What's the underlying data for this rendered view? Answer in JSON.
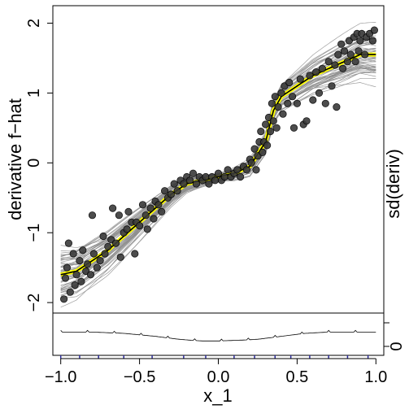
{
  "chart_data": [
    {
      "type": "scatter",
      "panel": "main",
      "title": "",
      "xlabel": "x_1",
      "ylabel": "derivative f−hat",
      "right_label": "sd(deriv)",
      "xlim": [
        -1.05,
        1.05
      ],
      "ylim": [
        -2.15,
        2.25
      ],
      "x_ticks": [
        -1.0,
        -0.5,
        0.0,
        0.5,
        1.0
      ],
      "x_tick_labels": [
        "−1.0",
        "−0.5",
        "0.0",
        "0.5",
        "1.0"
      ],
      "y_ticks": [
        -2,
        -1,
        0,
        1,
        2
      ],
      "y_tick_labels": [
        "−2",
        "−1",
        "0",
        "1",
        "2"
      ],
      "grid": false,
      "legend": "none",
      "colors": {
        "points": "#3a3a3a",
        "curves": "#8c8c8c",
        "mean_line": "#000000",
        "mean_halo": "#ffff00"
      },
      "series": [
        {
          "kind": "mean_derivative_curve",
          "x": [
            -1.0,
            -0.9,
            -0.8,
            -0.7,
            -0.6,
            -0.5,
            -0.4,
            -0.3,
            -0.2,
            -0.1,
            0.0,
            0.1,
            0.2,
            0.3,
            0.35,
            0.4,
            0.5,
            0.6,
            0.7,
            0.8,
            0.9,
            1.0
          ],
          "y": [
            -1.6,
            -1.55,
            -1.4,
            -1.25,
            -1.05,
            -0.85,
            -0.65,
            -0.45,
            -0.3,
            -0.25,
            -0.2,
            -0.15,
            -0.05,
            0.3,
            0.75,
            0.95,
            1.1,
            1.25,
            1.35,
            1.45,
            1.55,
            1.55
          ]
        },
        {
          "kind": "observed_points",
          "points": [
            [
              -0.98,
              -1.95
            ],
            [
              -0.97,
              -1.65
            ],
            [
              -0.96,
              -1.5
            ],
            [
              -0.95,
              -1.15
            ],
            [
              -0.94,
              -1.85
            ],
            [
              -0.92,
              -1.3
            ],
            [
              -0.91,
              -1.75
            ],
            [
              -0.9,
              -1.6
            ],
            [
              -0.88,
              -1.4
            ],
            [
              -0.87,
              -1.7
            ],
            [
              -0.86,
              -1.25
            ],
            [
              -0.84,
              -1.55
            ],
            [
              -0.83,
              -1.45
            ],
            [
              -0.81,
              -1.6
            ],
            [
              -0.8,
              -0.75
            ],
            [
              -0.79,
              -1.3
            ],
            [
              -0.77,
              -1.5
            ],
            [
              -0.75,
              -1.4
            ],
            [
              -0.73,
              -1.05
            ],
            [
              -0.72,
              -1.3
            ],
            [
              -0.7,
              -1.2
            ],
            [
              -0.68,
              -1.1
            ],
            [
              -0.67,
              -0.65
            ],
            [
              -0.65,
              -1.15
            ],
            [
              -0.63,
              -0.75
            ],
            [
              -0.62,
              -1.35
            ],
            [
              -0.6,
              -1.0
            ],
            [
              -0.58,
              -0.95
            ],
            [
              -0.57,
              -0.7
            ],
            [
              -0.55,
              -0.85
            ],
            [
              -0.53,
              -1.3
            ],
            [
              -0.52,
              -0.85
            ],
            [
              -0.5,
              -0.9
            ],
            [
              -0.48,
              -0.6
            ],
            [
              -0.46,
              -0.75
            ],
            [
              -0.45,
              -0.95
            ],
            [
              -0.43,
              -0.65
            ],
            [
              -0.41,
              -0.8
            ],
            [
              -0.4,
              -0.55
            ],
            [
              -0.38,
              -0.6
            ],
            [
              -0.36,
              -0.7
            ],
            [
              -0.34,
              -0.4
            ],
            [
              -0.32,
              -0.5
            ],
            [
              -0.3,
              -0.45
            ],
            [
              -0.28,
              -0.3
            ],
            [
              -0.26,
              -0.4
            ],
            [
              -0.24,
              -0.25
            ],
            [
              -0.22,
              -0.3
            ],
            [
              -0.2,
              -0.2
            ],
            [
              -0.18,
              -0.25
            ],
            [
              -0.16,
              -0.15
            ],
            [
              -0.14,
              -0.3
            ],
            [
              -0.12,
              -0.2
            ],
            [
              -0.1,
              -0.25
            ],
            [
              -0.08,
              -0.2
            ],
            [
              -0.06,
              -0.3
            ],
            [
              -0.04,
              -0.2
            ],
            [
              -0.02,
              -0.25
            ],
            [
              0.0,
              -0.15
            ],
            [
              0.02,
              -0.25
            ],
            [
              0.04,
              -0.2
            ],
            [
              0.06,
              -0.1
            ],
            [
              0.08,
              -0.2
            ],
            [
              0.1,
              -0.15
            ],
            [
              0.12,
              -0.1
            ],
            [
              0.14,
              -0.2
            ],
            [
              0.16,
              -0.05
            ],
            [
              0.18,
              -0.1
            ],
            [
              0.2,
              0.05
            ],
            [
              0.21,
              0.0
            ],
            [
              0.23,
              0.2
            ],
            [
              0.24,
              -0.1
            ],
            [
              0.25,
              0.1
            ],
            [
              0.26,
              0.3
            ],
            [
              0.27,
              0.45
            ],
            [
              0.28,
              0.15
            ],
            [
              0.29,
              0.3
            ],
            [
              0.3,
              0.55
            ],
            [
              0.31,
              0.25
            ],
            [
              0.32,
              0.65
            ],
            [
              0.33,
              0.45
            ],
            [
              0.34,
              0.85
            ],
            [
              0.35,
              0.6
            ],
            [
              0.36,
              0.95
            ],
            [
              0.37,
              0.5
            ],
            [
              0.38,
              0.8
            ],
            [
              0.4,
              1.0
            ],
            [
              0.41,
              0.7
            ],
            [
              0.42,
              1.1
            ],
            [
              0.44,
              0.85
            ],
            [
              0.45,
              1.15
            ],
            [
              0.47,
              0.95
            ],
            [
              0.48,
              0.5
            ],
            [
              0.5,
              0.85
            ],
            [
              0.52,
              1.2
            ],
            [
              0.54,
              0.55
            ],
            [
              0.56,
              0.6
            ],
            [
              0.58,
              1.25
            ],
            [
              0.6,
              0.9
            ],
            [
              0.62,
              1.3
            ],
            [
              0.64,
              1.0
            ],
            [
              0.66,
              1.35
            ],
            [
              0.68,
              0.85
            ],
            [
              0.7,
              1.45
            ],
            [
              0.72,
              1.1
            ],
            [
              0.74,
              1.4
            ],
            [
              0.75,
              0.8
            ],
            [
              0.76,
              1.55
            ],
            [
              0.78,
              1.7
            ],
            [
              0.79,
              1.35
            ],
            [
              0.8,
              1.6
            ],
            [
              0.82,
              1.45
            ],
            [
              0.83,
              1.75
            ],
            [
              0.84,
              1.55
            ],
            [
              0.86,
              1.8
            ],
            [
              0.87,
              1.45
            ],
            [
              0.88,
              1.85
            ],
            [
              0.89,
              1.6
            ],
            [
              0.9,
              1.75
            ],
            [
              0.91,
              1.85
            ],
            [
              0.93,
              1.55
            ],
            [
              0.94,
              1.8
            ],
            [
              0.96,
              1.85
            ],
            [
              0.98,
              1.75
            ],
            [
              0.99,
              1.9
            ]
          ]
        }
      ]
    },
    {
      "type": "line",
      "panel": "sd",
      "ylabel": "sd(deriv)",
      "y_ticks": [
        0
      ],
      "y_tick_labels": [
        "0"
      ],
      "x_rug_ticks": [
        -1.0,
        -0.88,
        -0.76,
        -0.6,
        -0.42,
        -0.22,
        -0.08,
        0.1,
        0.23,
        0.36,
        0.46,
        0.58,
        0.7,
        0.82,
        0.95
      ],
      "x": [
        -1.0,
        -0.8,
        -0.6,
        -0.4,
        -0.25,
        -0.15,
        -0.1,
        0.0,
        0.15,
        0.25,
        0.4,
        0.55,
        0.7,
        0.85,
        1.0
      ],
      "y": [
        0.55,
        0.55,
        0.52,
        0.45,
        0.38,
        0.35,
        0.34,
        0.34,
        0.36,
        0.38,
        0.45,
        0.52,
        0.55,
        0.55,
        0.55
      ]
    }
  ]
}
